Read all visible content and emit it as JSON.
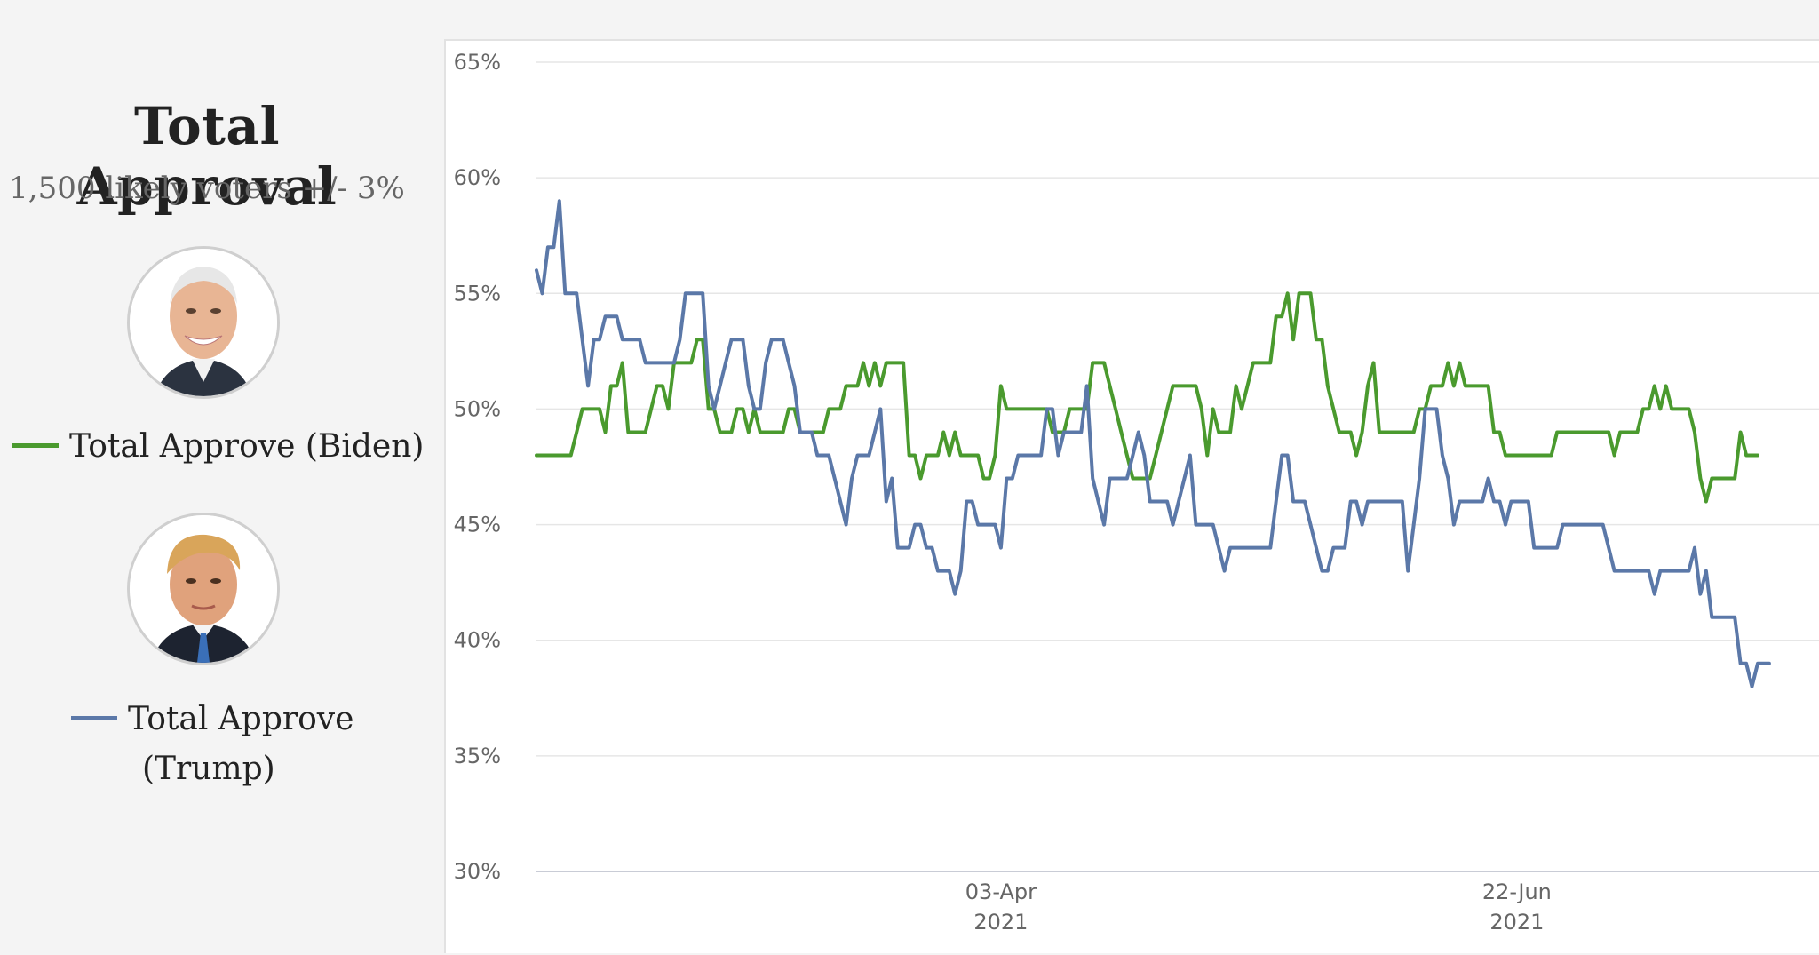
{
  "sidebar": {
    "title": "Total Approval",
    "subtitle": "1,500 likely voters +/- 3%",
    "legend": [
      {
        "label": "Total Approve (Biden)",
        "color": "#4a9a2e",
        "portrait": "biden-portrait"
      },
      {
        "label_line1": "Total Approve",
        "label_line2": "(Trump)",
        "color": "#5b78a8",
        "portrait": "trump-portrait"
      }
    ]
  },
  "chart_data": {
    "type": "line",
    "y_ticks": [
      "65%",
      "60%",
      "55%",
      "50%",
      "45%",
      "40%",
      "35%",
      "30%"
    ],
    "ylim": [
      30,
      65
    ],
    "x_ticks": [
      {
        "label": "03-Apr",
        "sublabel": "2021",
        "x": 81
      },
      {
        "label": "22-Jun",
        "sublabel": "2021",
        "x": 171
      }
    ],
    "xlim": [
      0,
      224
    ],
    "grid": true,
    "series": [
      {
        "name": "Total Approve (Biden)",
        "color": "#4a9a2e",
        "values": [
          48,
          48,
          48,
          48,
          48,
          48,
          48,
          49,
          50,
          50,
          50,
          50,
          49,
          51,
          51,
          52,
          49,
          49,
          49,
          49,
          50,
          51,
          51,
          50,
          52,
          52,
          52,
          52,
          53,
          53,
          50,
          50,
          49,
          49,
          49,
          50,
          50,
          49,
          50,
          49,
          49,
          49,
          49,
          49,
          50,
          50,
          49,
          49,
          49,
          49,
          49,
          50,
          50,
          50,
          51,
          51,
          51,
          52,
          51,
          52,
          51,
          52,
          52,
          52,
          52,
          48,
          48,
          47,
          48,
          48,
          48,
          49,
          48,
          49,
          48,
          48,
          48,
          48,
          47,
          47,
          48,
          51,
          50,
          50,
          50,
          50,
          50,
          50,
          50,
          50,
          49,
          49,
          49,
          50,
          50,
          50,
          50,
          52,
          52,
          52,
          51,
          50,
          49,
          48,
          47,
          47,
          47,
          47,
          48,
          49,
          50,
          51,
          51,
          51,
          51,
          51,
          50,
          48,
          50,
          49,
          49,
          49,
          51,
          50,
          51,
          52,
          52,
          52,
          52,
          54,
          54,
          55,
          53,
          55,
          55,
          55,
          53,
          53,
          51,
          50,
          49,
          49,
          49,
          48,
          49,
          51,
          52,
          49,
          49,
          49,
          49,
          49,
          49,
          49,
          50,
          50,
          51,
          51,
          51,
          52,
          51,
          52,
          51,
          51,
          51,
          51,
          51,
          49,
          49,
          48,
          48,
          48,
          48,
          48,
          48,
          48,
          48,
          48,
          49,
          49,
          49,
          49,
          49,
          49,
          49,
          49,
          49,
          49,
          48,
          49,
          49,
          49,
          49,
          50,
          50,
          51,
          50,
          51,
          50,
          50,
          50,
          50,
          49,
          47,
          46,
          47,
          47,
          47,
          47,
          47,
          49,
          48,
          48,
          48
        ]
      },
      {
        "name": "Total Approve (Trump)",
        "color": "#5b78a8",
        "values": [
          56,
          55,
          57,
          57,
          59,
          55,
          55,
          55,
          53,
          51,
          53,
          53,
          54,
          54,
          54,
          53,
          53,
          53,
          53,
          52,
          52,
          52,
          52,
          52,
          52,
          53,
          55,
          55,
          55,
          55,
          51,
          50,
          51,
          52,
          53,
          53,
          53,
          51,
          50,
          50,
          52,
          53,
          53,
          53,
          52,
          51,
          49,
          49,
          49,
          48,
          48,
          48,
          47,
          46,
          45,
          47,
          48,
          48,
          48,
          49,
          50,
          46,
          47,
          44,
          44,
          44,
          45,
          45,
          44,
          44,
          43,
          43,
          43,
          42,
          43,
          46,
          46,
          45,
          45,
          45,
          45,
          44,
          47,
          47,
          48,
          48,
          48,
          48,
          48,
          50,
          50,
          48,
          49,
          49,
          49,
          49,
          51,
          47,
          46,
          45,
          47,
          47,
          47,
          47,
          48,
          49,
          48,
          46,
          46,
          46,
          46,
          45,
          46,
          47,
          48,
          45,
          45,
          45,
          45,
          44,
          43,
          44,
          44,
          44,
          44,
          44,
          44,
          44,
          44,
          46,
          48,
          48,
          46,
          46,
          46,
          45,
          44,
          43,
          43,
          44,
          44,
          44,
          46,
          46,
          45,
          46,
          46,
          46,
          46,
          46,
          46,
          46,
          43,
          45,
          47,
          50,
          50,
          50,
          48,
          47,
          45,
          46,
          46,
          46,
          46,
          46,
          47,
          46,
          46,
          45,
          46,
          46,
          46,
          46,
          44,
          44,
          44,
          44,
          44,
          45,
          45,
          45,
          45,
          45,
          45,
          45,
          45,
          44,
          43,
          43,
          43,
          43,
          43,
          43,
          43,
          42,
          43,
          43,
          43,
          43,
          43,
          43,
          44,
          42,
          43,
          41,
          41,
          41,
          41,
          41,
          39,
          39,
          38,
          39,
          39,
          39
        ]
      }
    ]
  }
}
